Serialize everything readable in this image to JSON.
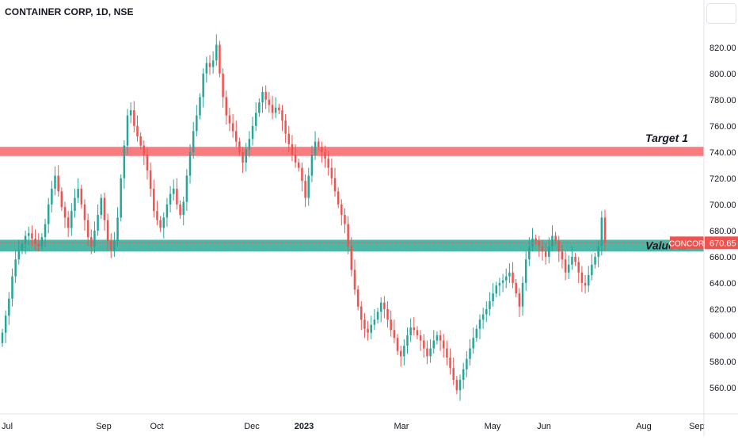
{
  "header": {
    "title": "CONTAINER CORP, 1D, NSE"
  },
  "price_tag": {
    "symbol": "CONCOR",
    "price": "670.65",
    "color": "#ef5350"
  },
  "colors": {
    "up": "#26a69a",
    "down": "#ef5350",
    "zone_target": "#f77c80",
    "zone_value": "#4db6a4"
  },
  "chart_data": {
    "type": "candlestick",
    "title": "CONTAINER CORP, 1D, NSE",
    "ylim": [
      540,
      835
    ],
    "y_ticks": [
      "820.00",
      "800.00",
      "780.00",
      "760.00",
      "740.00",
      "720.00",
      "700.00",
      "680.00",
      "660.00",
      "640.00",
      "620.00",
      "600.00",
      "580.00",
      "560.00"
    ],
    "x_ticks": [
      "Jul",
      "Sep",
      "Oct",
      "Dec",
      "2023",
      "Mar",
      "May",
      "Jun",
      "Aug",
      "Sep"
    ],
    "zones": [
      {
        "name": "Target 1",
        "from": 737,
        "to": 744,
        "color": "#f77c80"
      },
      {
        "name": "Value ar",
        "from": 664,
        "to": 673,
        "color": "#4db6a4"
      }
    ],
    "last_price": 670.65,
    "series_close": [
      602,
      615,
      628,
      645,
      658,
      665,
      670,
      676,
      678,
      674,
      670,
      668,
      675,
      685,
      700,
      712,
      722,
      710,
      698,
      690,
      682,
      695,
      705,
      712,
      700,
      688,
      675,
      668,
      680,
      692,
      705,
      688,
      672,
      665,
      672,
      690,
      720,
      745,
      768,
      772,
      760,
      752,
      745,
      738,
      726,
      712,
      695,
      688,
      682,
      690,
      700,
      708,
      712,
      700,
      692,
      702,
      722,
      740,
      756,
      768,
      782,
      800,
      808,
      805,
      810,
      822,
      800,
      782,
      768,
      762,
      756,
      748,
      740,
      732,
      742,
      750,
      760,
      770,
      778,
      786,
      780,
      776,
      770,
      774,
      772,
      764,
      754,
      746,
      738,
      732,
      728,
      718,
      705,
      722,
      738,
      748,
      744,
      740,
      735,
      728,
      720,
      710,
      700,
      692,
      685,
      668,
      650,
      635,
      622,
      612,
      605,
      602,
      608,
      612,
      618,
      625,
      620,
      612,
      604,
      598,
      588,
      584,
      592,
      600,
      606,
      604,
      600,
      596,
      590,
      584,
      590,
      596,
      600,
      596,
      590,
      583,
      575,
      566,
      558,
      566,
      574,
      582,
      590,
      598,
      605,
      612,
      616,
      620,
      626,
      632,
      638,
      640,
      642,
      645,
      648,
      640,
      632,
      622,
      640,
      658,
      668,
      674,
      672,
      668,
      664,
      660,
      668,
      676,
      672,
      664,
      658,
      648,
      654,
      660,
      656,
      648,
      640,
      638,
      646,
      654,
      660,
      668,
      690,
      670.65
    ]
  }
}
